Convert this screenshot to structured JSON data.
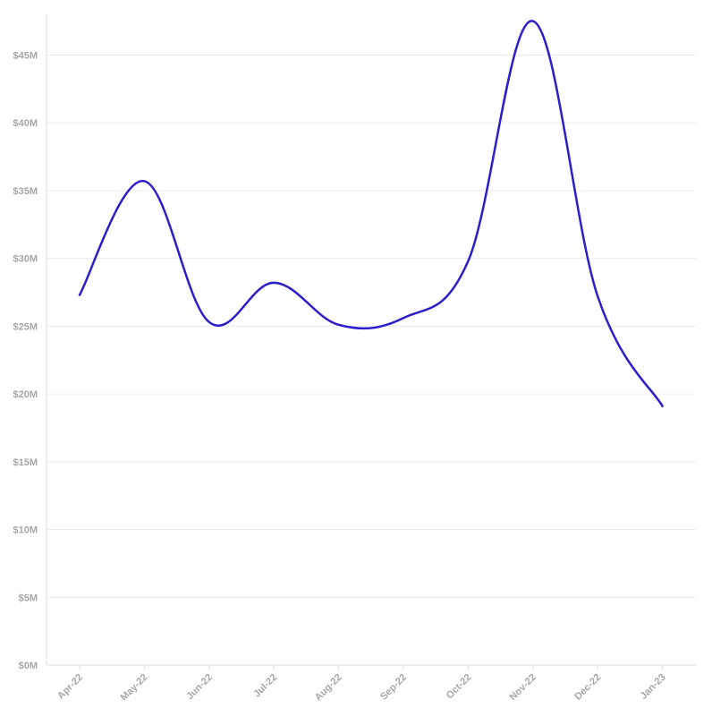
{
  "chart_data": {
    "type": "line",
    "title": "",
    "xlabel": "",
    "ylabel": "",
    "categories": [
      "Apr-22",
      "May-22",
      "Jun-22",
      "Jul-22",
      "Aug-22",
      "Sep-22",
      "Oct-22",
      "Nov-22",
      "Dec-22",
      "Jan-23"
    ],
    "series": [
      {
        "values": [
          27.3,
          35.7,
          25.3,
          28.2,
          25.1,
          25.6,
          29.8,
          47.5,
          27.2,
          19.1
        ]
      }
    ],
    "ylim": [
      0,
      48
    ],
    "yticks": [
      0,
      5,
      10,
      15,
      20,
      25,
      30,
      35,
      40,
      45
    ],
    "ytick_labels": [
      "$0M",
      "$5M",
      "$10M",
      "$15M",
      "$20M",
      "$25M",
      "$30M",
      "$35M",
      "$40M",
      "$45M"
    ],
    "grid": true,
    "smooth": true,
    "line_color": "#2a1fc9"
  }
}
